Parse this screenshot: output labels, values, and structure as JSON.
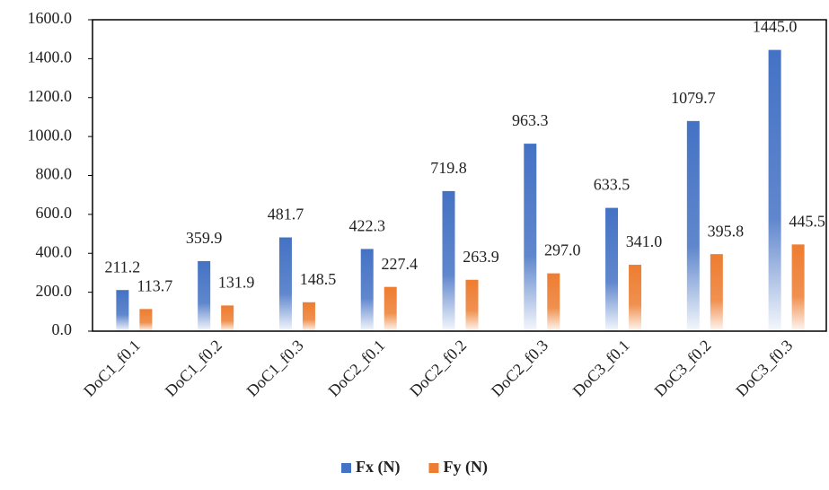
{
  "chart_data": {
    "type": "bar",
    "categories": [
      "DoC1_f0.1",
      "DoC1_f0.2",
      "DoC1_f0.3",
      "DoC2_f0.1",
      "DoC2_f0.2",
      "DoC2_f0.3",
      "DoC3_f0.1",
      "DoC3_f0.2",
      "DoC3_f0.3"
    ],
    "series": [
      {
        "name": "Fx (N)",
        "color": "#4472c4",
        "values": [
          211.2,
          359.9,
          481.7,
          422.3,
          719.8,
          963.3,
          633.5,
          1079.7,
          1445.0
        ],
        "value_labels": [
          "211.2",
          "359.9",
          "481.7",
          "422.3",
          "719.8",
          "963.3",
          "633.5",
          "1079.7",
          "1445.0"
        ]
      },
      {
        "name": "Fy (N)",
        "color": "#ed7d31",
        "values": [
          113.7,
          131.9,
          148.5,
          227.4,
          263.9,
          297.0,
          341.0,
          395.8,
          445.5
        ],
        "value_labels": [
          "113.7",
          "131.9",
          "148.5",
          "227.4",
          "263.9",
          "297.0",
          "341.0",
          "395.8",
          "445.5"
        ]
      }
    ],
    "ylim": [
      0,
      1600
    ],
    "yticks": [
      {
        "value": 0,
        "label": "0.0"
      },
      {
        "value": 200,
        "label": "200.0"
      },
      {
        "value": 400,
        "label": "400.0"
      },
      {
        "value": 600,
        "label": "600.0"
      },
      {
        "value": 800,
        "label": "800.0"
      },
      {
        "value": 1000,
        "label": "1000.0"
      },
      {
        "value": 1200,
        "label": "1200.0"
      },
      {
        "value": 1400,
        "label": "1400.0"
      },
      {
        "value": 1600,
        "label": "1600.0"
      }
    ],
    "grid": false,
    "legend": "bottom"
  }
}
